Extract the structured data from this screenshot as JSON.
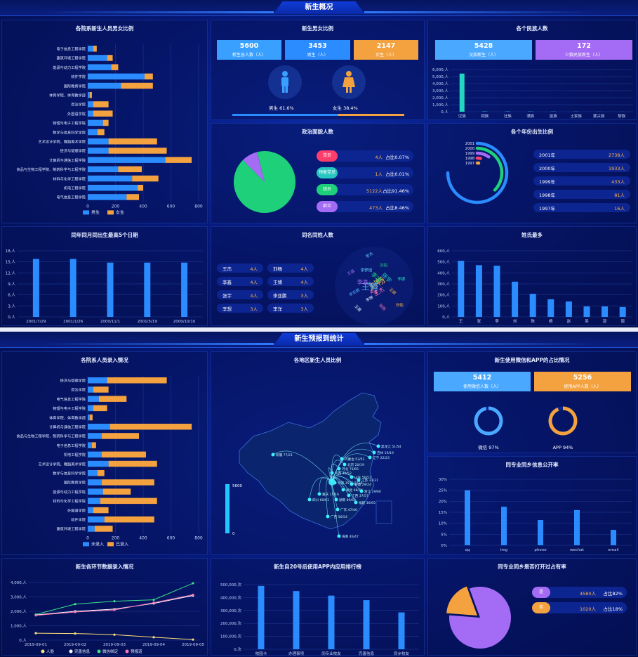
{
  "screen1": {
    "title": "新生概况",
    "gender_by_college": {
      "title": "各院系新生人员男女比例",
      "legend": [
        "男生",
        "女生"
      ],
      "colleges": [
        "电子信息工程学院",
        "建筑环境工程学院",
        "能源与动力工程学院",
        "软件学院",
        "国际教育学院",
        "体育学院、体育教学部",
        "商法学院",
        "外国语学院",
        "物理与电子工程学院",
        "数学与信息科学学院",
        "艺术设计学院、舞蹈美术学院",
        "经济与管理学院",
        "计算机与通信工程学院",
        "食品与生物工程学院、制药科学与工程学院",
        "材料与化学工程学院",
        "机电工程学院",
        "电气信息工程学院"
      ],
      "male": [
        40,
        140,
        170,
        410,
        240,
        15,
        40,
        40,
        110,
        70,
        150,
        150,
        560,
        220,
        320,
        360,
        280
      ],
      "female": [
        25,
        40,
        50,
        60,
        230,
        15,
        110,
        140,
        40,
        50,
        350,
        420,
        190,
        170,
        190,
        40,
        90
      ],
      "xticks": [
        "0",
        "200",
        "400",
        "600",
        "800"
      ]
    },
    "gender_ratio": {
      "title": "新生男女比例",
      "stats": [
        {
          "value": "5600",
          "label": "新生总人数（人）",
          "color": "#3aa0ff"
        },
        {
          "value": "3453",
          "label": "男生（人）",
          "color": "#2a8cff"
        },
        {
          "value": "2147",
          "label": "女生（人）",
          "color": "#f4a23f"
        }
      ],
      "male_label": "男生 61.6%",
      "female_label": "女生 38.4%",
      "male_fraction": 0.616
    },
    "ethnic": {
      "title": "各个民族人数",
      "stats": [
        {
          "value": "5428",
          "label": "汉族新生（人）",
          "color": "#4aa8ff"
        },
        {
          "value": "172",
          "label": "少数民族新生（人）",
          "color": "#a46cf4"
        }
      ],
      "categories": [
        "汉族",
        "回族",
        "壮族",
        "满族",
        "苗族",
        "土家族",
        "蒙古族",
        "黎族"
      ],
      "values": [
        5428,
        40,
        35,
        30,
        25,
        20,
        12,
        10
      ],
      "yticks": [
        "0,人",
        "1,000,人",
        "2,000,人",
        "3,000,人",
        "4,000,人",
        "5,000,人",
        "6,000,人"
      ]
    },
    "political": {
      "title": "政治面貌人数",
      "items": [
        {
          "tag": "党员",
          "count": "4人",
          "pct": "占比0.07%",
          "color": "#ff3d6a",
          "value": 4
        },
        {
          "tag": "预备党员",
          "count": "1人",
          "pct": "占比0.01%",
          "color": "#27c7c0",
          "value": 1
        },
        {
          "tag": "团员",
          "count": "5122人",
          "pct": "占比91.46%",
          "color": "#1ed07a",
          "value": 5122
        },
        {
          "tag": "群众",
          "count": "473人",
          "pct": "占比8.46%",
          "color": "#a46cf4",
          "value": 473
        }
      ]
    },
    "birth_year": {
      "title": "各个年份出生比例",
      "years": [
        "2001",
        "2000",
        "1999",
        "1998",
        "1997"
      ],
      "rows": [
        {
          "year": "2001年",
          "count": "2738人",
          "value": 2738
        },
        {
          "year": "2000年",
          "count": "1933人",
          "value": 1933
        },
        {
          "year": "1999年",
          "count": "433人",
          "value": 433
        },
        {
          "year": "1998年",
          "count": "81人",
          "value": 81
        },
        {
          "year": "1997年",
          "count": "16人",
          "value": 16
        }
      ]
    },
    "same_birthday": {
      "title": "同年同月同出生最高5个日期",
      "categories": [
        "2001/7/29",
        "2001/1/26",
        "2000/11/1",
        "2001/5/19",
        "2000/10/10"
      ],
      "values": [
        15.8,
        15.8,
        14.8,
        14.8,
        14.8
      ],
      "yticks": [
        "0,人",
        "3,人",
        "6,人",
        "9,人",
        "12,人",
        "15,人",
        "18,人"
      ]
    },
    "same_name": {
      "title": "同名同姓人数",
      "rows": [
        [
          {
            "name": "王杰",
            "count": "4人"
          },
          {
            "name": "刘畅",
            "count": "4人"
          }
        ],
        [
          {
            "name": "李鑫",
            "count": "4人"
          },
          {
            "name": "王博",
            "count": "4人"
          }
        ],
        [
          {
            "name": "张宇",
            "count": "4人"
          },
          {
            "name": "李亚鹏",
            "count": "3人"
          }
        ],
        [
          {
            "name": "李想",
            "count": "3人"
          },
          {
            "name": "李洋",
            "count": "3人"
          }
        ]
      ],
      "cloud": [
        "刘畅",
        "王博",
        "李洋",
        "王杰",
        "李鑫",
        "张宇",
        "李想",
        "李梦瑶",
        "王颖",
        "李亚鹏",
        "刘阳",
        "张丽",
        "王鑫",
        "李娜",
        "王晨",
        "李杰",
        "刘佳",
        "张涛",
        "王欢",
        "李强"
      ]
    },
    "surnames": {
      "title": "姓氏最多",
      "categories": [
        "王",
        "张",
        "李",
        "刘",
        "陈",
        "杨",
        "赵",
        "吴",
        "郭",
        "周"
      ],
      "values": [
        510,
        470,
        465,
        320,
        210,
        160,
        140,
        95,
        95,
        90
      ],
      "yticks": [
        "0,人",
        "100,人",
        "200,人",
        "300,人",
        "400,人",
        "500,人",
        "600,人"
      ]
    }
  },
  "screen2": {
    "title": "新生预报到统计",
    "entry": {
      "title": "各院系人员录入情况",
      "legend": [
        "未录入",
        "已录入"
      ],
      "colleges": [
        "经济与管理学院",
        "商法学院",
        "电气信息工程学院",
        "物理与电子工程学院",
        "体育学院、体育教学部",
        "计算机与通信工程学院",
        "食品与生物工程学院、制药科学与工程学院",
        "电子信息工程学院",
        "机电工程学院",
        "艺术设计学院、舞蹈美术学院",
        "数学与信息科学学院",
        "国际教育学院",
        "能源与动力工程学院",
        "材料与化学工程学院",
        "外国语学院",
        "软件学院",
        "建筑环境工程学院"
      ],
      "not_entered": [
        140,
        40,
        80,
        40,
        15,
        160,
        100,
        30,
        100,
        150,
        70,
        100,
        110,
        90,
        40,
        120,
        50
      ],
      "entered": [
        430,
        110,
        200,
        100,
        20,
        590,
        270,
        30,
        320,
        350,
        50,
        380,
        200,
        410,
        110,
        360,
        130
      ],
      "xticks": [
        "0",
        "200",
        "400",
        "600",
        "800"
      ]
    },
    "map": {
      "title": "各地区新生人员比例",
      "scale_max": "5600",
      "scale_min": "0",
      "labels": [
        "新疆 77/21",
        "黑龙江 51/54",
        "吉林 19/19",
        "辽宁 22/23",
        "内蒙古 53/52",
        "北京 20/19",
        "河北 75/65",
        "山西 40/52",
        "山东 56/57",
        "河南 3576/3726",
        "江苏 31/31",
        "安徽 29/24",
        "湖北 88/74",
        "浙江 29/60",
        "江西 37/57",
        "湖南 89/69",
        "福建 36/65",
        "广东 47/40",
        "广西 56/54",
        "海南 46/47",
        "四川 60/61",
        "重庆 15/16"
      ]
    },
    "app_usage": {
      "title": "新生使用微信和APP的占比情况",
      "stats": [
        {
          "value": "5412",
          "label": "使用微信人数（人）",
          "color": "#4aa8ff"
        },
        {
          "value": "5256",
          "label": "使用APP人数（人）",
          "color": "#f4a23f"
        }
      ],
      "wechat_label": "微信 97%",
      "wechat_fraction": 0.97,
      "app_label": "APP 94%",
      "app_fraction": 0.94
    },
    "privacy": {
      "title": "同专业同乡信息公开率",
      "categories": [
        "qq",
        "img",
        "phone",
        "wechat",
        "email"
      ],
      "values": [
        25,
        17.5,
        11.5,
        16,
        7
      ],
      "yticks": [
        "0%",
        "5%",
        "10%",
        "15%",
        "20%",
        "25%",
        "30%"
      ]
    },
    "steps": {
      "title": "新生各环节数据录入情况",
      "dates": [
        "2019-09-01",
        "2019-09-02",
        "2019-09-03",
        "2019-09-04",
        "2019-09-05"
      ],
      "legend": [
        "人脸",
        "完善信息",
        "微信绑定",
        "预报道"
      ],
      "series": [
        {
          "name": "人脸",
          "color": "#ffe27a",
          "values": [
            480,
            460,
            380,
            200,
            40
          ]
        },
        {
          "name": "完善信息",
          "color": "#ffffff",
          "values": [
            1750,
            2000,
            2150,
            2550,
            3100
          ]
        },
        {
          "name": "微信绑定",
          "color": "#3fe08a",
          "values": [
            1780,
            2500,
            2700,
            2800,
            3950
          ]
        },
        {
          "name": "预报道",
          "color": "#ff7ab8",
          "values": [
            1720,
            1950,
            2100,
            2600,
            3150
          ]
        }
      ],
      "yticks": [
        "0,人",
        "1,000,人",
        "2,000,人",
        "3,000,人",
        "4,000,人"
      ]
    },
    "app_rank": {
      "title": "新生自20号后使用APP内应用排行榜",
      "categories": [
        "校园卡",
        "办理事项",
        "同专业校友",
        "完善信息",
        "同乡校友"
      ],
      "values": [
        490000,
        450000,
        415000,
        380000,
        285000
      ],
      "yticks": [
        "0,次",
        "100,000,次",
        "200,000,次",
        "300,000,次",
        "400,000,次",
        "500,000,次"
      ]
    },
    "open_rate": {
      "title": "同专业同乡是否打开过占有率",
      "items": [
        {
          "tag": "是",
          "count": "4580人",
          "pct": "占比82%",
          "color": "#a46cf4",
          "value": 4580
        },
        {
          "tag": "否",
          "count": "1020人",
          "pct": "占比18%",
          "color": "#f4a23f",
          "value": 1020
        }
      ]
    }
  }
}
